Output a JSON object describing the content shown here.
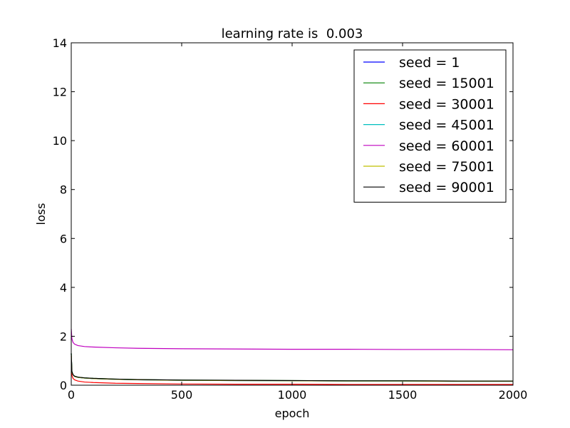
{
  "chart_data": {
    "type": "line",
    "title": "learning rate is  0.003",
    "xlabel": "epoch",
    "ylabel": "loss",
    "xlim": [
      0,
      2000
    ],
    "ylim": [
      0,
      14
    ],
    "xticks": [
      0,
      500,
      1000,
      1500,
      2000
    ],
    "yticks": [
      0,
      2,
      4,
      6,
      8,
      10,
      12,
      14
    ],
    "grid": false,
    "legend_position": "top-right",
    "series": [
      {
        "name": "seed = 1",
        "color": "#0000ff",
        "x": [
          0,
          3,
          8,
          15,
          30,
          60,
          100,
          200,
          300,
          500,
          750,
          1000,
          1250,
          1500,
          1750,
          2000
        ],
        "y": [
          1.3,
          0.55,
          0.42,
          0.36,
          0.32,
          0.29,
          0.27,
          0.24,
          0.22,
          0.2,
          0.19,
          0.18,
          0.17,
          0.17,
          0.16,
          0.16
        ]
      },
      {
        "name": "seed = 15001",
        "color": "#008000",
        "x": [
          0,
          3,
          8,
          15,
          30,
          60,
          100,
          200,
          300,
          500,
          750,
          1000,
          1250,
          1500,
          1750,
          2000
        ],
        "y": [
          1.3,
          0.56,
          0.43,
          0.37,
          0.33,
          0.3,
          0.28,
          0.25,
          0.23,
          0.21,
          0.2,
          0.19,
          0.18,
          0.18,
          0.17,
          0.17
        ]
      },
      {
        "name": "seed = 30001",
        "color": "#ff0000",
        "x": [
          0,
          3,
          8,
          15,
          30,
          60,
          100,
          200,
          300,
          500,
          750,
          1000,
          1250,
          1500,
          1750,
          2000
        ],
        "y": [
          1.2,
          0.4,
          0.28,
          0.22,
          0.17,
          0.13,
          0.11,
          0.08,
          0.07,
          0.05,
          0.04,
          0.04,
          0.03,
          0.03,
          0.03,
          0.03
        ]
      },
      {
        "name": "seed = 45001",
        "color": "#00bfbf",
        "x": [
          0,
          3,
          8,
          15,
          30,
          60,
          100,
          200,
          300,
          500,
          750,
          1000,
          1250,
          1500,
          1750,
          2000
        ],
        "y": [
          1.3,
          0.55,
          0.42,
          0.36,
          0.32,
          0.29,
          0.27,
          0.24,
          0.22,
          0.2,
          0.19,
          0.18,
          0.17,
          0.17,
          0.16,
          0.16
        ]
      },
      {
        "name": "seed = 60001",
        "color": "#bf00bf",
        "x": [
          0,
          3,
          8,
          15,
          30,
          60,
          100,
          200,
          300,
          500,
          750,
          1000,
          1250,
          1500,
          1750,
          2000
        ],
        "y": [
          2.3,
          1.9,
          1.75,
          1.68,
          1.62,
          1.58,
          1.56,
          1.53,
          1.51,
          1.49,
          1.48,
          1.47,
          1.47,
          1.46,
          1.46,
          1.45
        ]
      },
      {
        "name": "seed = 75001",
        "color": "#bfbf00",
        "x": [
          0,
          3,
          8,
          15,
          30,
          60,
          100,
          200,
          300,
          500,
          750,
          1000,
          1250,
          1500,
          1750,
          2000
        ],
        "y": [
          1.3,
          0.55,
          0.42,
          0.36,
          0.32,
          0.29,
          0.27,
          0.24,
          0.22,
          0.2,
          0.19,
          0.18,
          0.17,
          0.17,
          0.16,
          0.16
        ]
      },
      {
        "name": "seed = 90001",
        "color": "#000000",
        "x": [
          0,
          3,
          8,
          15,
          30,
          60,
          100,
          200,
          300,
          500,
          750,
          1000,
          1250,
          1500,
          1750,
          2000
        ],
        "y": [
          1.3,
          0.56,
          0.43,
          0.37,
          0.33,
          0.3,
          0.28,
          0.25,
          0.23,
          0.21,
          0.2,
          0.19,
          0.18,
          0.18,
          0.17,
          0.17
        ]
      }
    ]
  }
}
